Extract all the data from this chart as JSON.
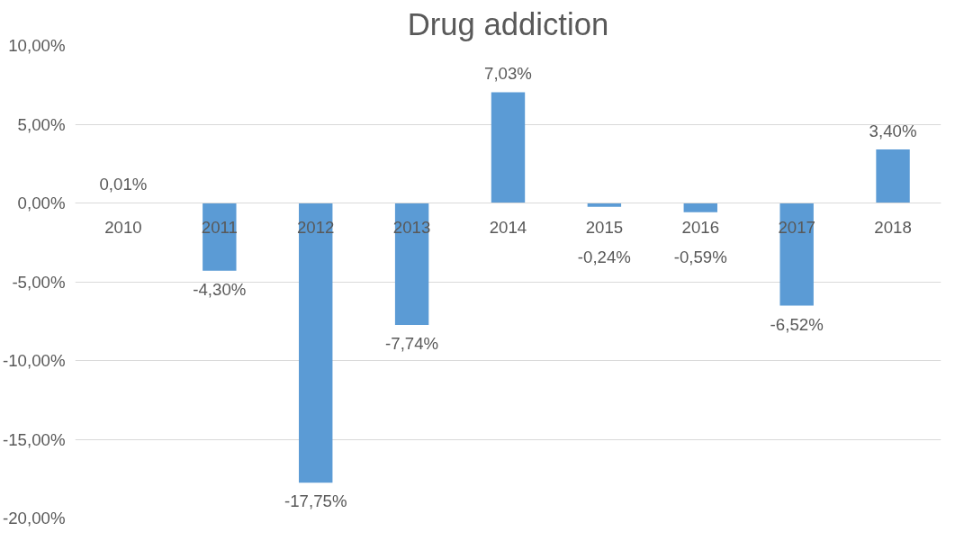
{
  "chart_data": {
    "type": "bar",
    "title": "Drug addiction",
    "categories": [
      "2010",
      "2011",
      "2012",
      "2013",
      "2014",
      "2015",
      "2016",
      "2017",
      "2018"
    ],
    "values": [
      0.01,
      -4.3,
      -17.75,
      -7.74,
      7.03,
      -0.24,
      -0.59,
      -6.52,
      3.4
    ],
    "value_labels": [
      "0,01%",
      "-4,30%",
      "-17,75%",
      "-7,74%",
      "7,03%",
      "-0,24%",
      "-0,59%",
      "-6,52%",
      "3,40%"
    ],
    "color": "#5b9bd5",
    "ylim": [
      -20,
      10
    ],
    "yticks": [
      {
        "value": -20,
        "label": "-20,00%"
      },
      {
        "value": -15,
        "label": "-15,00%"
      },
      {
        "value": -10,
        "label": "-10,00%"
      },
      {
        "value": -5,
        "label": "-5,00%"
      },
      {
        "value": 0,
        "label": "0,00%"
      },
      {
        "value": 5,
        "label": "5,00%"
      },
      {
        "value": 10,
        "label": "10,00%"
      }
    ],
    "grid": "y"
  }
}
